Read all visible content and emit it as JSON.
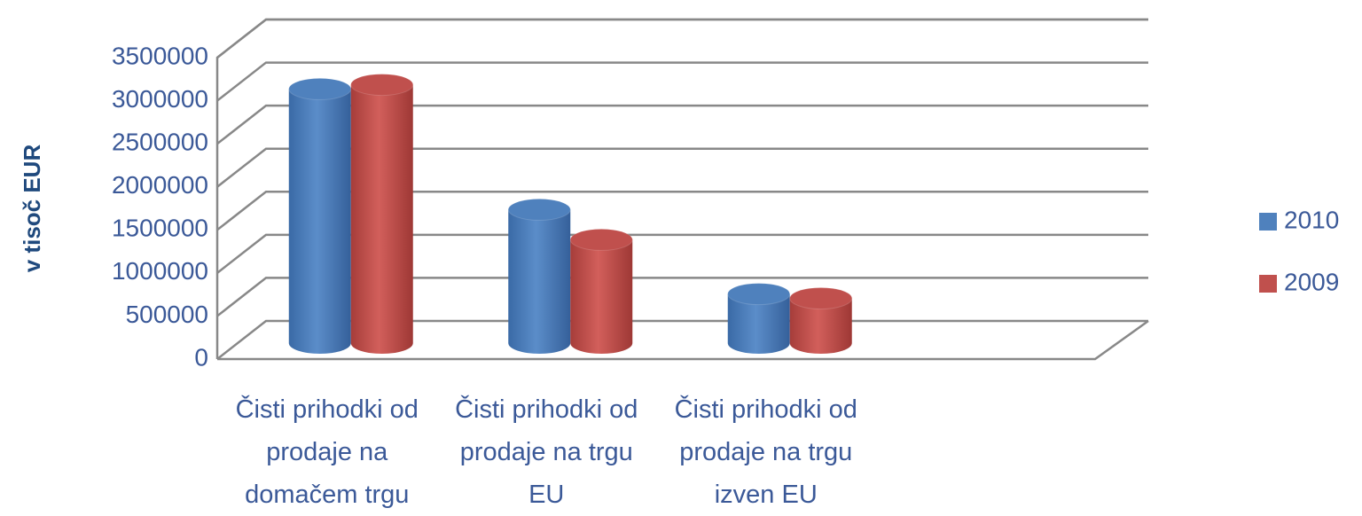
{
  "chart_data": {
    "type": "bar3d",
    "y_label": "v tisoč EUR",
    "categories": [
      "Čisti prihodki od prodaje na domačem trgu",
      "Čisti prihodki od prodaje na trgu EU",
      "Čisti prihodki od prodaje na trgu izven EU"
    ],
    "series": [
      {
        "name": "2010",
        "color": "#4f81bd",
        "values": [
          2950000,
          1550000,
          570000
        ]
      },
      {
        "name": "2009",
        "color": "#c0504d",
        "values": [
          3000000,
          1200000,
          520000
        ]
      }
    ],
    "ylim": [
      0,
      3500000
    ],
    "yticks": [
      0,
      500000,
      1000000,
      1500000,
      2000000,
      2500000,
      3000000,
      3500000
    ],
    "grid": true,
    "legend": "right"
  }
}
